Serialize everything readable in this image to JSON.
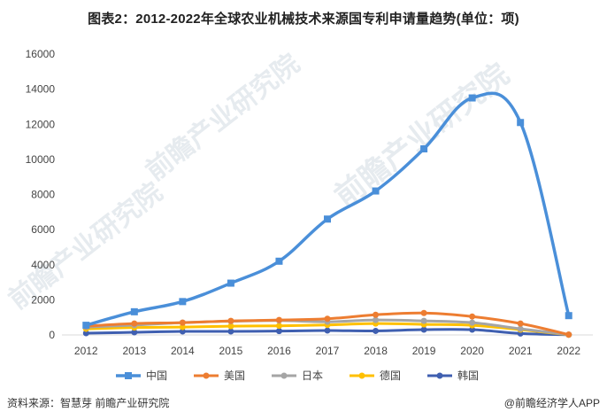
{
  "title": "图表2：2012-2022年全球农业机械技术来源国专利申请量趋势(单位：项)",
  "watermarks": [
    "前瞻产业研究院",
    "前瞻产业研究院",
    "前瞻产业研究院"
  ],
  "source": "资料来源：智慧芽 前瞻产业研究院",
  "brand": "@前瞻经济学人APP",
  "chart_data": {
    "type": "line",
    "categories": [
      "2012",
      "2013",
      "2014",
      "2015",
      "2016",
      "2017",
      "2018",
      "2019",
      "2020",
      "2021",
      "2022"
    ],
    "ylim": [
      0,
      16000
    ],
    "yticks": [
      0,
      2000,
      4000,
      6000,
      8000,
      10000,
      12000,
      14000,
      16000
    ],
    "grid": false,
    "legend_position": "bottom",
    "series": [
      {
        "name": "中国",
        "color": "#4a8fd9",
        "marker": "square",
        "width": 3.5,
        "values": [
          550,
          1320,
          1900,
          2950,
          4200,
          6600,
          8200,
          10600,
          13500,
          12100,
          1100
        ]
      },
      {
        "name": "美国",
        "color": "#ed7d31",
        "marker": "circle",
        "width": 3,
        "values": [
          500,
          650,
          700,
          800,
          850,
          920,
          1150,
          1250,
          1050,
          650,
          20
        ]
      },
      {
        "name": "日本",
        "color": "#a5a5a5",
        "marker": "circle",
        "width": 3,
        "values": [
          450,
          560,
          700,
          780,
          820,
          750,
          850,
          800,
          700,
          350,
          20
        ]
      },
      {
        "name": "德国",
        "color": "#ffc000",
        "marker": "circle",
        "width": 3,
        "values": [
          350,
          420,
          450,
          500,
          520,
          570,
          650,
          600,
          550,
          300,
          10
        ]
      },
      {
        "name": "韩国",
        "color": "#3f5fb0",
        "marker": "circle",
        "width": 3,
        "values": [
          100,
          150,
          200,
          200,
          220,
          250,
          230,
          300,
          300,
          80,
          10
        ]
      }
    ]
  }
}
